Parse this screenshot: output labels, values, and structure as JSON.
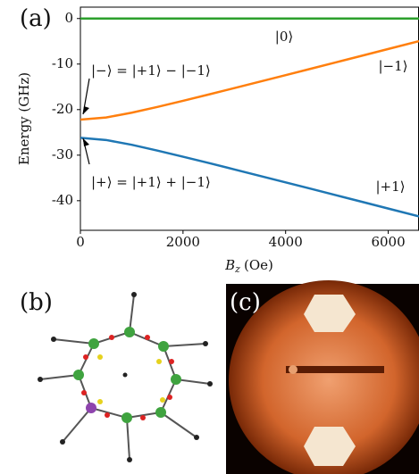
{
  "panel_labels": [
    "(a)",
    "(b)",
    "(c)"
  ],
  "chart_data": {
    "type": "line",
    "ylabel": "Energy (GHz)",
    "xlabel": {
      "symbol": "B",
      "subscript": "z",
      "unit": "(Oe)"
    },
    "x": [
      0,
      500,
      1000,
      1500,
      2000,
      2500,
      3000,
      3500,
      4000,
      4500,
      5000,
      5500,
      6000,
      6600
    ],
    "series": [
      {
        "name": "|0⟩",
        "color": "#2ca02c",
        "values": [
          0,
          0,
          0,
          0,
          0,
          0,
          0,
          0,
          0,
          0,
          0,
          0,
          0,
          0
        ]
      },
      {
        "name": "|−1⟩",
        "color": "#ff7f0e",
        "values": [
          -22.2,
          -21.73,
          -20.68,
          -19.41,
          -18.07,
          -16.68,
          -15.27,
          -13.86,
          -12.43,
          -11.0,
          -9.56,
          -8.13,
          -6.69,
          -4.96
        ]
      },
      {
        "name": "|+1⟩",
        "color": "#1f77b4",
        "values": [
          -26.2,
          -26.67,
          -27.72,
          -28.99,
          -30.34,
          -31.72,
          -33.13,
          -34.55,
          -35.97,
          -37.4,
          -38.84,
          -40.28,
          -41.72,
          -43.44
        ]
      }
    ],
    "annotations": [
      "|−⟩ = |+1⟩ − |−1⟩",
      "|+⟩ = |+1⟩ + |−1⟩"
    ],
    "xlim": [
      0,
      6600
    ],
    "ylim": [
      -46.5,
      2.5
    ],
    "xticks": [
      0,
      2000,
      4000,
      6000
    ],
    "yticks": [
      0,
      -10,
      -20,
      -30,
      -40
    ]
  }
}
